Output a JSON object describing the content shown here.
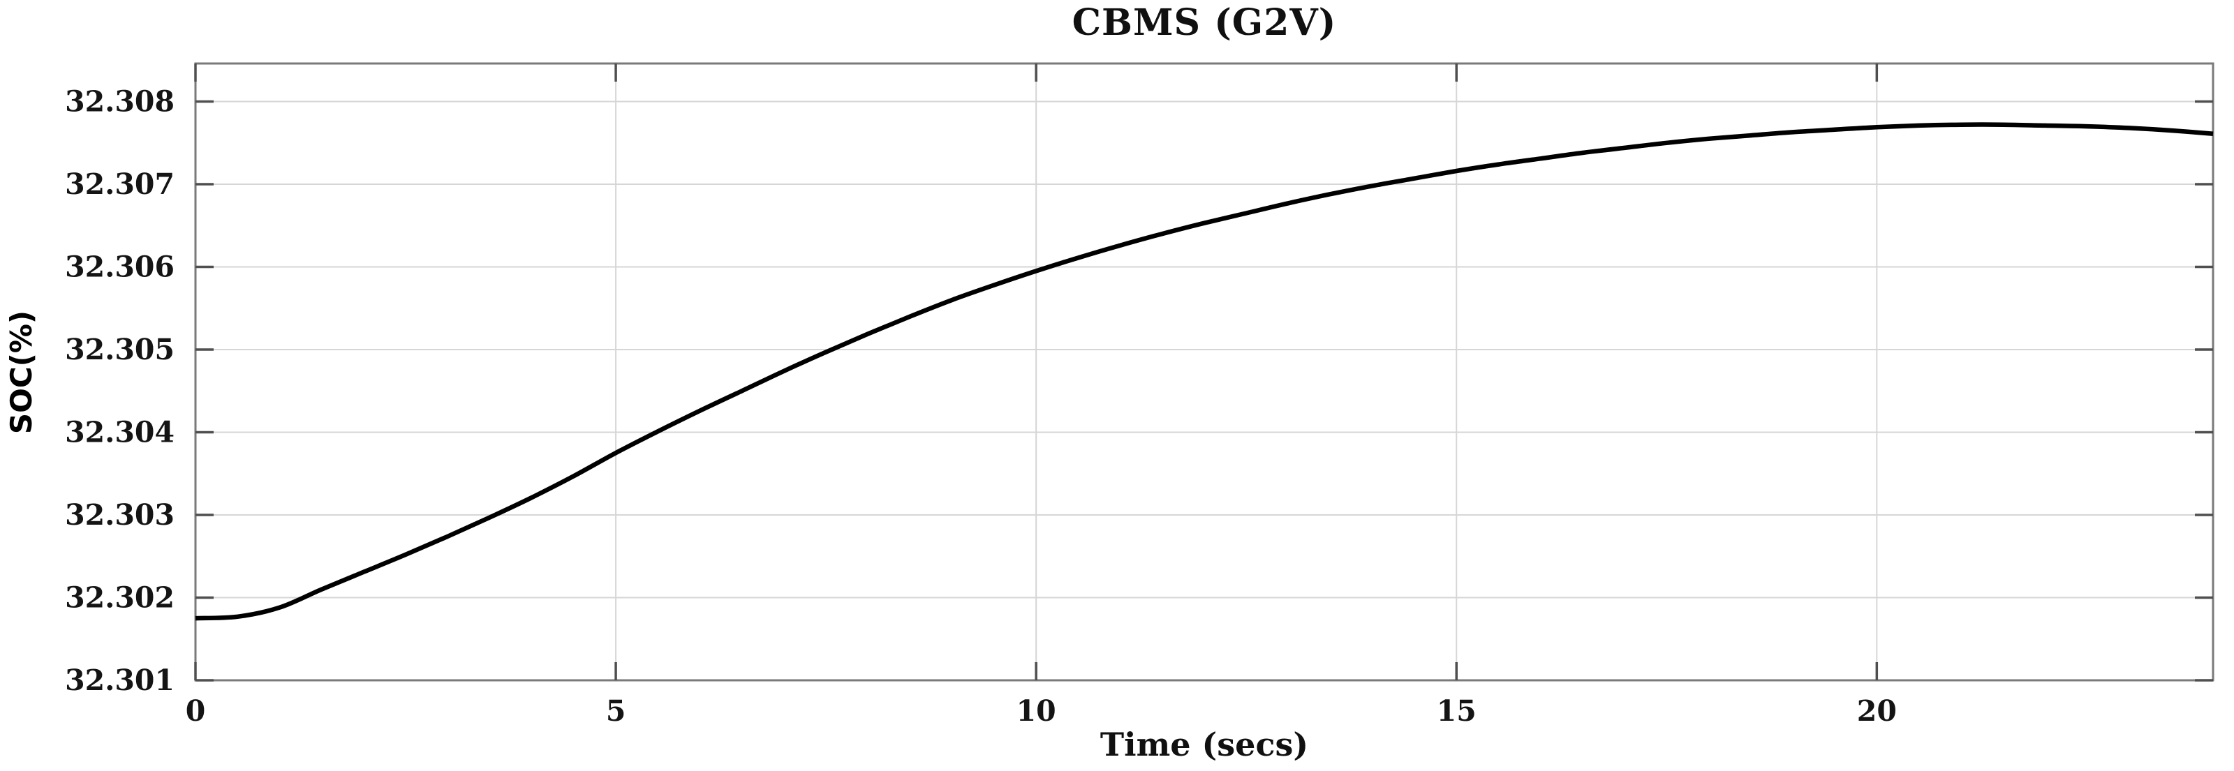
{
  "page": {
    "background": "#ffffff"
  },
  "figure": {
    "title": "CBMS (G2V)",
    "x_axis_label": "Time (secs)",
    "y_axis_label": "SOC(%)"
  },
  "colors": {
    "curve": "#000000",
    "grid": "#d6d6d6",
    "axis_border": "#7a7a7a",
    "tick_mark": "#4f4f4f",
    "text": "#141414"
  },
  "chart_data": {
    "type": "line",
    "title": "CBMS (G2V)",
    "xlabel": "Time (secs)",
    "ylabel": "SOC(%)",
    "xlim": [
      0,
      24
    ],
    "ylim": [
      32.301,
      32.30846
    ],
    "x_ticks": [
      0,
      5,
      10,
      15,
      20
    ],
    "x_tick_labels": [
      "0",
      "5",
      "10",
      "15",
      "20"
    ],
    "y_ticks": [
      32.301,
      32.302,
      32.303,
      32.304,
      32.305,
      32.306,
      32.307,
      32.308
    ],
    "y_tick_labels": [
      "32.301",
      "32.302",
      "32.303",
      "32.304",
      "32.305",
      "32.306",
      "32.307",
      "32.308"
    ],
    "grid": true,
    "legend": "none",
    "series": [
      {
        "name": "SOC",
        "color": "#000000",
        "x": [
          0,
          0.5,
          1,
          1.5,
          2,
          2.5,
          3,
          3.5,
          4,
          4.5,
          5,
          5.5,
          6,
          6.5,
          7,
          7.5,
          8,
          8.5,
          9,
          9.5,
          10,
          10.5,
          11,
          11.5,
          12,
          12.5,
          13,
          13.5,
          14,
          14.5,
          15,
          15.5,
          16,
          16.5,
          17,
          17.5,
          18,
          18.5,
          19,
          19.5,
          20,
          20.5,
          21,
          21.5,
          22,
          22.5,
          23,
          23.5,
          24
        ],
        "y": [
          32.30175,
          32.30177,
          32.30188,
          32.3021,
          32.30231,
          32.30252,
          32.30274,
          32.30297,
          32.30321,
          32.30347,
          32.30375,
          32.30401,
          32.30426,
          32.3045,
          32.30474,
          32.30497,
          32.30519,
          32.3054,
          32.3056,
          32.30578,
          32.30595,
          32.30611,
          32.30626,
          32.3064,
          32.30653,
          32.30665,
          32.30677,
          32.30688,
          32.30698,
          32.30707,
          32.30716,
          32.30724,
          32.30731,
          32.30738,
          32.30744,
          32.3075,
          32.30755,
          32.30759,
          32.30763,
          32.30766,
          32.30769,
          32.30771,
          32.30772,
          32.30772,
          32.30771,
          32.3077,
          32.30768,
          32.30765,
          32.30761
        ]
      }
    ]
  }
}
